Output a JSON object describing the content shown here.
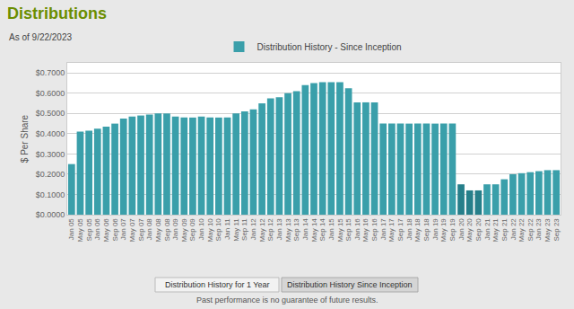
{
  "chart_data": {
    "type": "bar",
    "title": "Distributions",
    "subtitle": "As of 9/22/2023",
    "ylabel": "$ Per Share",
    "annotations": [
      "Past performance is no guarantee of future results.",
      "Distribution History for 1 Year",
      "Distribution History Since Inception"
    ],
    "categories": [
      "Jan 05",
      "May 05",
      "Sep 05",
      "Jan 06",
      "May 06",
      "Sep 06",
      "Jan 07",
      "May 07",
      "Sep 07",
      "Jan 08",
      "May 08",
      "Sep 08",
      "Jan 09",
      "May 09",
      "Sep 09",
      "Jan 10",
      "May 10",
      "Sep 10",
      "Jan 11",
      "May 11",
      "Sep 11",
      "Jan 12",
      "May 12",
      "Sep 12",
      "Jan 13",
      "May 13",
      "Sep 13",
      "Jan 14",
      "May 14",
      "Sep 14",
      "Jan 15",
      "May 15",
      "Sep 15",
      "Jan 16",
      "May 16",
      "Sep 16",
      "Jan 17",
      "May 17",
      "Sep 17",
      "Jan 18",
      "May 18",
      "Sep 18",
      "Jan 19",
      "May 19",
      "Sep 19",
      "Jan 20",
      "May 20",
      "Sep 20",
      "Jan 21",
      "May 21",
      "Sep 21",
      "Jan 22",
      "May 22",
      "Sep 22",
      "Jan 23",
      "May 23",
      "Sep 23"
    ],
    "series": [
      {
        "name": "Distribution History - Since Inception",
        "values": [
          0.25,
          0.41,
          0.415,
          0.425,
          0.435,
          0.45,
          0.475,
          0.485,
          0.49,
          0.495,
          0.5,
          0.5,
          0.485,
          0.48,
          0.48,
          0.485,
          0.48,
          0.48,
          0.48,
          0.5,
          0.51,
          0.52,
          0.55,
          0.575,
          0.58,
          0.6,
          0.61,
          0.64,
          0.65,
          0.655,
          0.655,
          0.655,
          0.625,
          0.555,
          0.555,
          0.555,
          0.45,
          0.45,
          0.45,
          0.45,
          0.45,
          0.45,
          0.45,
          0.45,
          0.45,
          0.15,
          0.12,
          0.12,
          0.15,
          0.15,
          0.175,
          0.2,
          0.205,
          0.21,
          0.215,
          0.22,
          0.22
        ],
        "colors": [
          "#3a9faa",
          "#3a9faa",
          "#3a9faa",
          "#3a9faa",
          "#3a9faa",
          "#3a9faa",
          "#3a9faa",
          "#3a9faa",
          "#3a9faa",
          "#3a9faa",
          "#3a9faa",
          "#3a9faa",
          "#3a9faa",
          "#3a9faa",
          "#3a9faa",
          "#3a9faa",
          "#3a9faa",
          "#3a9faa",
          "#3a9faa",
          "#3a9faa",
          "#3a9faa",
          "#3a9faa",
          "#3a9faa",
          "#3a9faa",
          "#3a9faa",
          "#3a9faa",
          "#3a9faa",
          "#3a9faa",
          "#3a9faa",
          "#3a9faa",
          "#3a9faa",
          "#3a9faa",
          "#3a9faa",
          "#3a9faa",
          "#3a9faa",
          "#3a9faa",
          "#3a9faa",
          "#3a9faa",
          "#3a9faa",
          "#3a9faa",
          "#3a9faa",
          "#3a9faa",
          "#3a9faa",
          "#3a9faa",
          "#3a9faa",
          "#267f8a",
          "#267f8a",
          "#267f8a",
          "#3a9faa",
          "#3a9faa",
          "#3a9faa",
          "#3a9faa",
          "#3a9faa",
          "#3a9faa",
          "#3a9faa",
          "#3a9faa",
          "#3a9faa"
        ]
      }
    ],
    "ylim": [
      0,
      0.75
    ],
    "yticks": [
      {
        "value": 0.0,
        "label": "$0.0000"
      },
      {
        "value": 0.1,
        "label": "$0.1000"
      },
      {
        "value": 0.2,
        "label": "$0.2000"
      },
      {
        "value": 0.3,
        "label": "$0.3000"
      },
      {
        "value": 0.4,
        "label": "$0.4000"
      },
      {
        "value": 0.5,
        "label": "$0.5000"
      },
      {
        "value": 0.6,
        "label": "$0.6000"
      },
      {
        "value": 0.7,
        "label": "$0.7000"
      }
    ],
    "grid": true,
    "legend": "top"
  }
}
